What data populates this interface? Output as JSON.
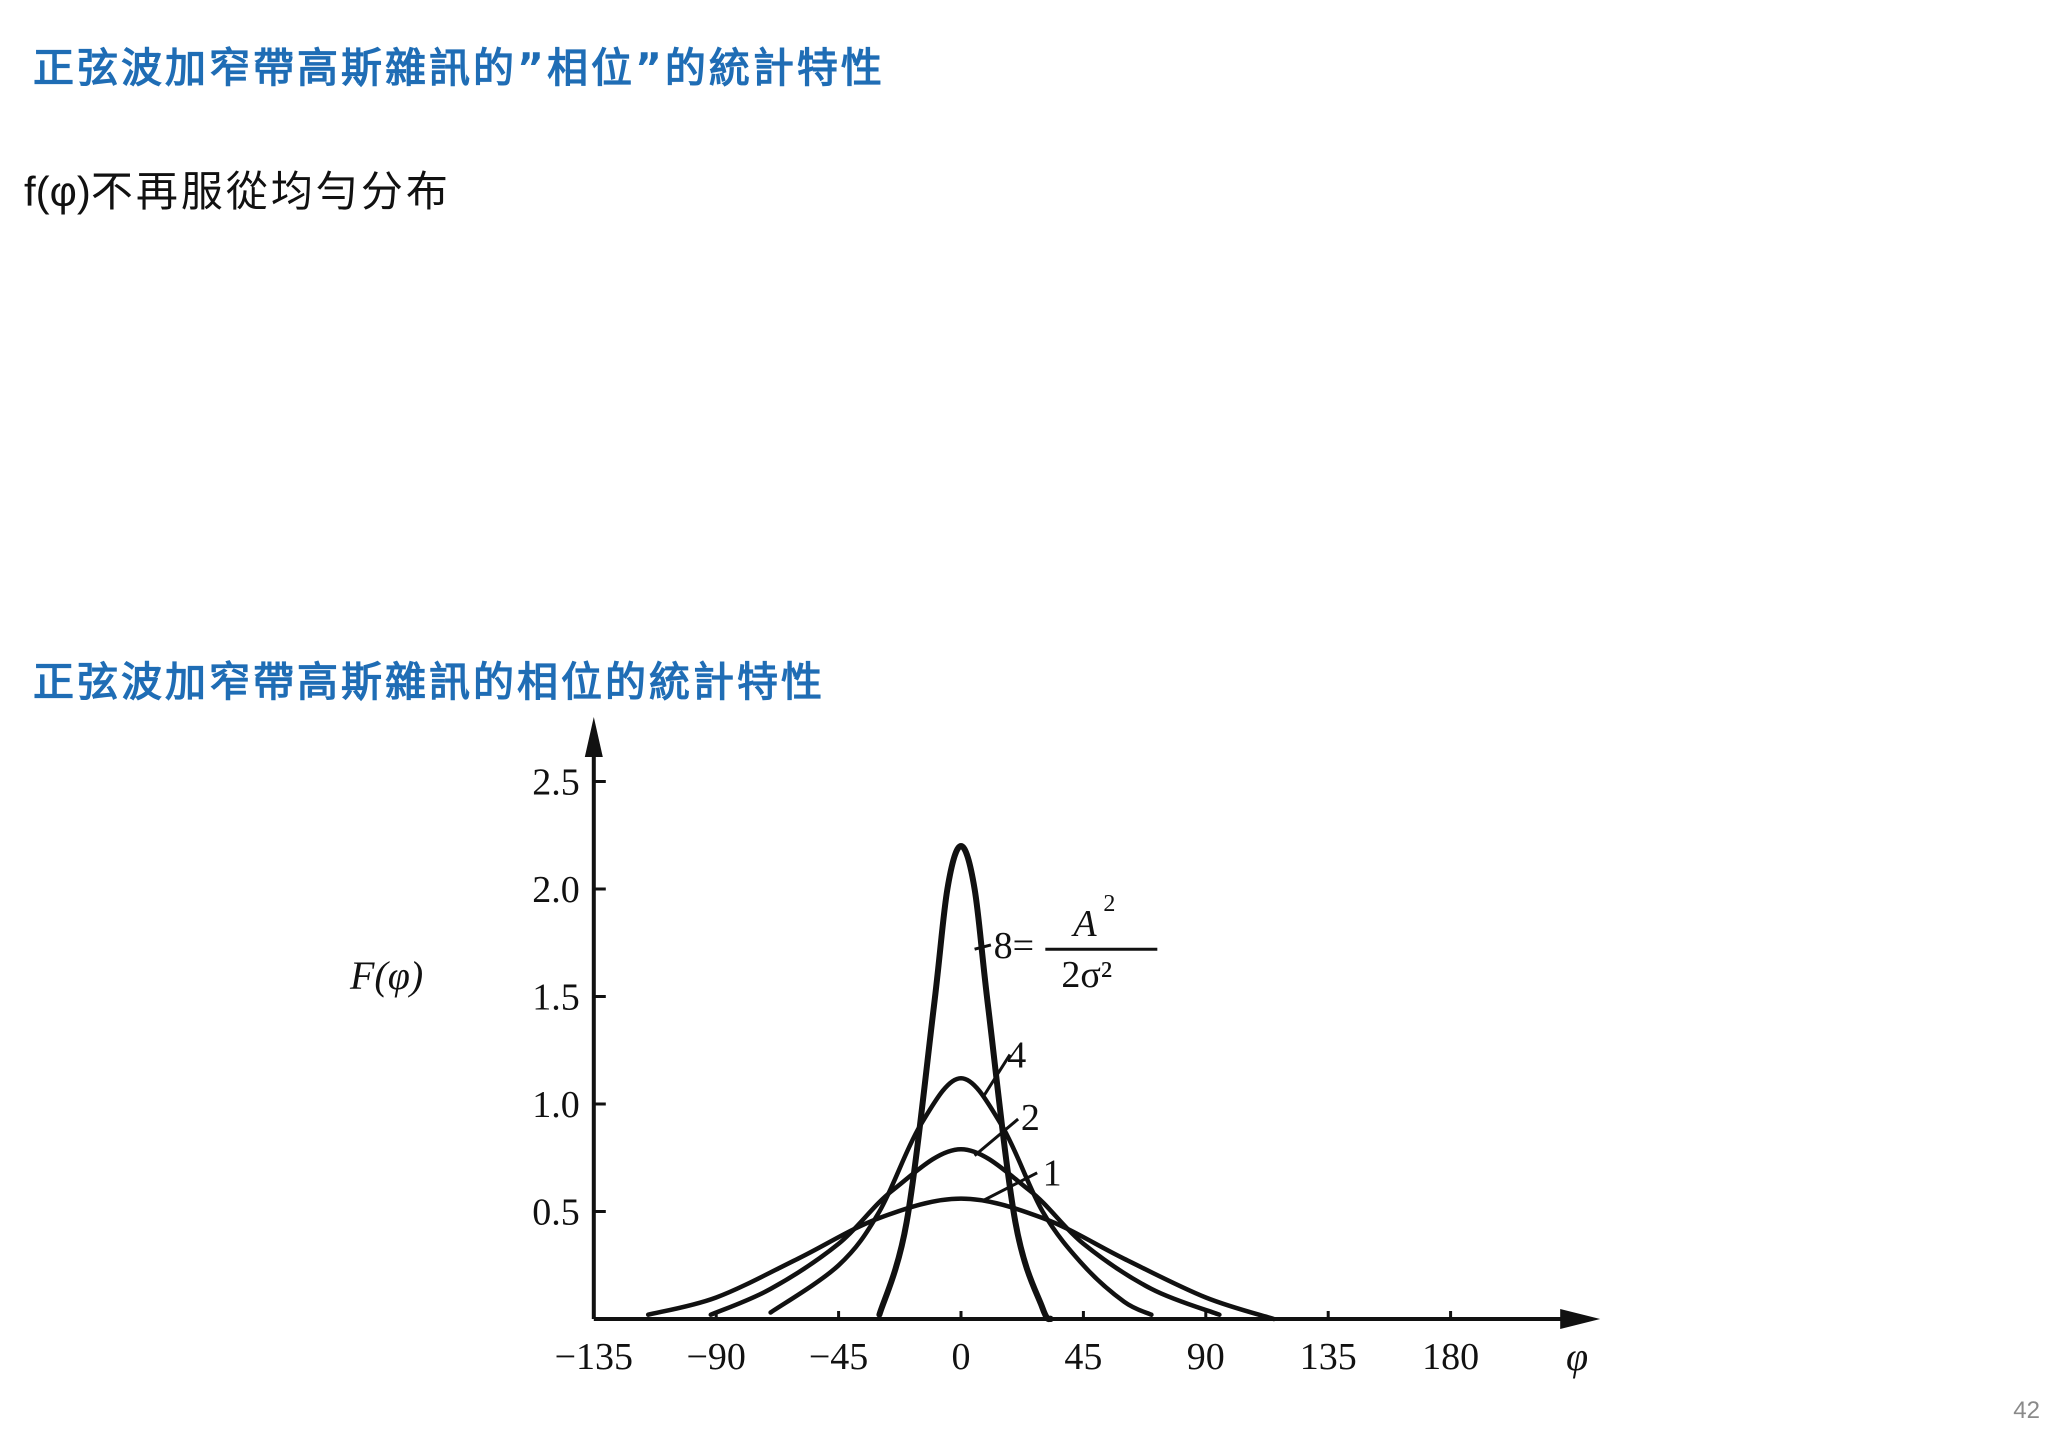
{
  "colors": {
    "heading": "#1f6db5",
    "ink": "#111111"
  },
  "slide": {
    "title": "正弦波加窄帶高斯雜訊的”相位”的統計特性",
    "subtitle_fn": "f(φ)",
    "subtitle_text": "不再服從均勻分布",
    "figure_title": "正弦波加窄帶高斯雜訊的相位的統計特性",
    "page_number": "42"
  },
  "chart_data": {
    "type": "line",
    "ylabel": "F(φ)",
    "xlabel": "φ",
    "xticks": [
      -135,
      -90,
      -45,
      0,
      45,
      90,
      135,
      180
    ],
    "xtick_labels": [
      "−135",
      "−90",
      "−45",
      "0",
      "45",
      "90",
      "135",
      "180"
    ],
    "yticks": [
      0.5,
      1.0,
      1.5,
      2.0,
      2.5
    ],
    "ytick_labels": [
      "0.5",
      "1.0",
      "1.5",
      "2.0",
      "2.5"
    ],
    "xlim": [
      -140,
      240
    ],
    "ylim": [
      0,
      2.6
    ],
    "series": [
      {
        "name": "8",
        "label": "8=",
        "x": [
          -30,
          -20,
          -10,
          -5,
          0,
          5,
          10,
          20,
          30,
          33
        ],
        "y": [
          0.02,
          0.45,
          1.45,
          2.0,
          2.2,
          2.0,
          1.45,
          0.45,
          0.05,
          0.0
        ]
      },
      {
        "name": "4",
        "label": "4",
        "x": [
          -70,
          -45,
          -30,
          -15,
          0,
          15,
          30,
          45,
          60,
          70
        ],
        "y": [
          0.03,
          0.25,
          0.5,
          0.9,
          1.12,
          0.9,
          0.5,
          0.25,
          0.08,
          0.02
        ]
      },
      {
        "name": "2",
        "label": "2",
        "x": [
          -92,
          -70,
          -45,
          -25,
          0,
          25,
          45,
          70,
          95
        ],
        "y": [
          0.02,
          0.14,
          0.35,
          0.6,
          0.79,
          0.6,
          0.35,
          0.14,
          0.02
        ]
      },
      {
        "name": "1",
        "label": "1",
        "x": [
          -115,
          -90,
          -60,
          -30,
          0,
          30,
          60,
          90,
          115
        ],
        "y": [
          0.02,
          0.1,
          0.28,
          0.47,
          0.56,
          0.47,
          0.28,
          0.1,
          0.0
        ]
      }
    ],
    "annotation": {
      "numerator": "A",
      "exponent": "2",
      "denominator": "2σ²"
    }
  }
}
